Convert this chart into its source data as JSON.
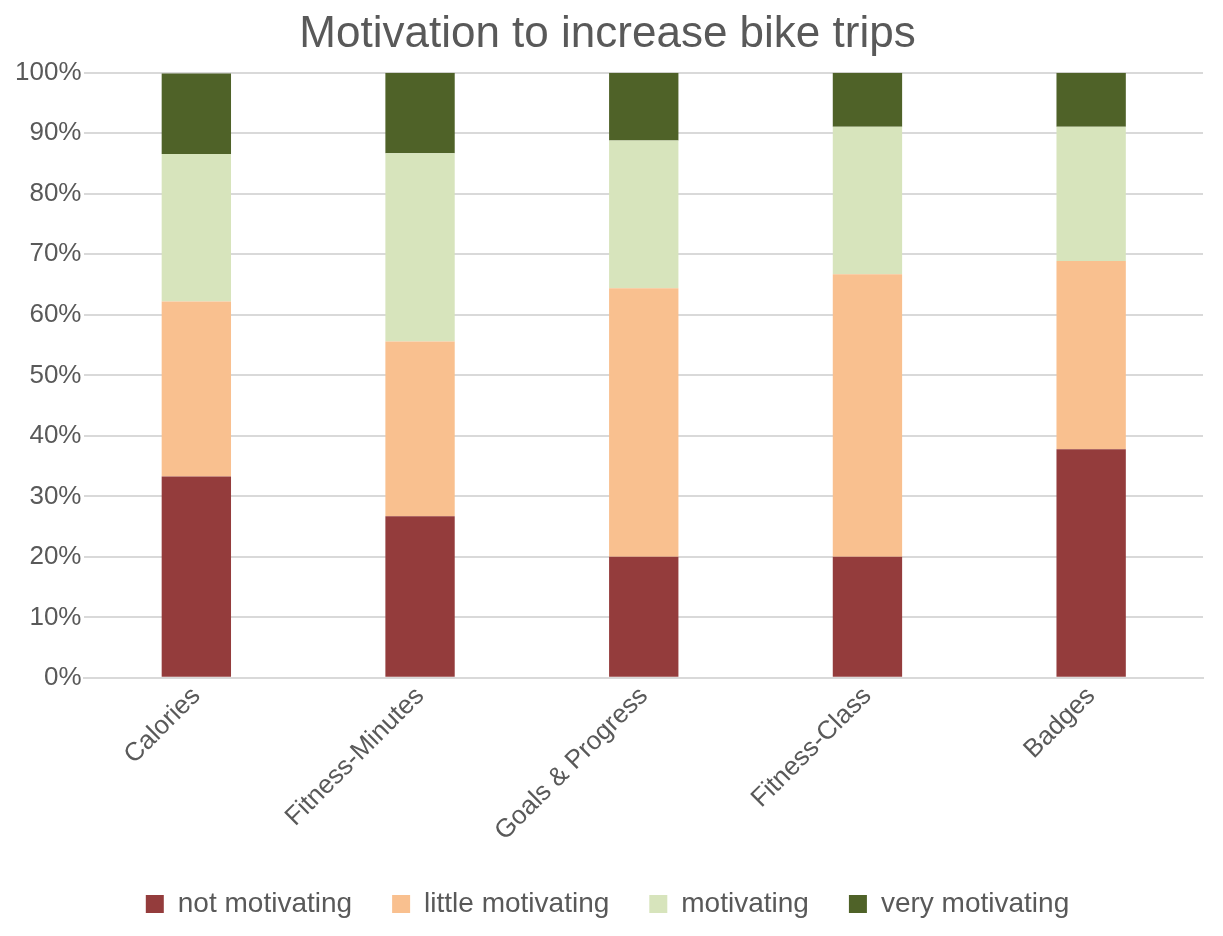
{
  "chart_data": {
    "type": "bar",
    "title": "Motivation to increase bike trips",
    "stacked": true,
    "categories": [
      "Calories",
      "Fitness-Minutes",
      "Goals & Progress",
      "Fitness-Class",
      "Badges"
    ],
    "series": [
      {
        "name": "not motivating",
        "color": "#943c3c",
        "values": [
          33.3,
          26.7,
          20.0,
          20.0,
          37.8
        ]
      },
      {
        "name": "little motivating",
        "color": "#f9c08f",
        "values": [
          28.9,
          28.9,
          44.4,
          46.7,
          31.1
        ]
      },
      {
        "name": "motivating",
        "color": "#d7e4bc",
        "values": [
          24.4,
          31.1,
          24.4,
          24.4,
          22.2
        ]
      },
      {
        "name": "very motivating",
        "color": "#4f6228",
        "values": [
          13.3,
          13.3,
          11.2,
          8.9,
          8.9
        ]
      }
    ],
    "ylim": [
      0,
      100
    ],
    "yticks": [
      {
        "value": 0,
        "label": "0%"
      },
      {
        "value": 10,
        "label": "10%"
      },
      {
        "value": 20,
        "label": "20%"
      },
      {
        "value": 30,
        "label": "30%"
      },
      {
        "value": 40,
        "label": "40%"
      },
      {
        "value": 50,
        "label": "50%"
      },
      {
        "value": 60,
        "label": "60%"
      },
      {
        "value": 70,
        "label": "70%"
      },
      {
        "value": 80,
        "label": "80%"
      },
      {
        "value": 90,
        "label": "90%"
      },
      {
        "value": 100,
        "label": "100%"
      }
    ],
    "grid": "y",
    "legend": "bottom"
  }
}
